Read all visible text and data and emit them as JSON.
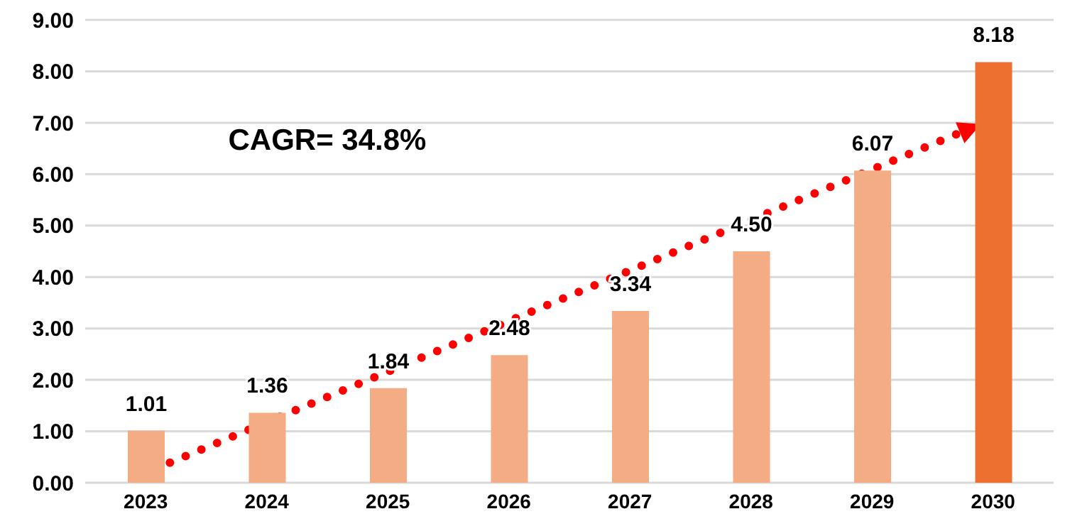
{
  "chart_data": {
    "type": "bar",
    "categories": [
      "2023",
      "2024",
      "2025",
      "2026",
      "2027",
      "2028",
      "2029",
      "2030"
    ],
    "values": [
      1.01,
      1.36,
      1.84,
      2.48,
      3.34,
      4.5,
      6.07,
      8.18
    ],
    "colors": [
      "#f4ac84",
      "#f4ac84",
      "#f4ac84",
      "#f4ac84",
      "#f4ac84",
      "#f4ac84",
      "#f4ac84",
      "#ed7031"
    ],
    "value_labels": [
      "1.01",
      "1.36",
      "1.84",
      "2.48",
      "3.34",
      "4.50",
      "6.07",
      "8.18"
    ],
    "ylim": [
      0,
      9
    ],
    "yticks": [
      {
        "value": 0,
        "label": "0.00"
      },
      {
        "value": 1,
        "label": "1.00"
      },
      {
        "value": 2,
        "label": "2.00"
      },
      {
        "value": 3,
        "label": "3.00"
      },
      {
        "value": 4,
        "label": "4.00"
      },
      {
        "value": 5,
        "label": "5.00"
      },
      {
        "value": 6,
        "label": "6.00"
      },
      {
        "value": 7,
        "label": "7.00"
      },
      {
        "value": 8,
        "label": "8.00"
      },
      {
        "value": 9,
        "label": "9.00"
      }
    ],
    "grid": "y",
    "annotations": [
      "CAGR= 34.8%"
    ]
  }
}
